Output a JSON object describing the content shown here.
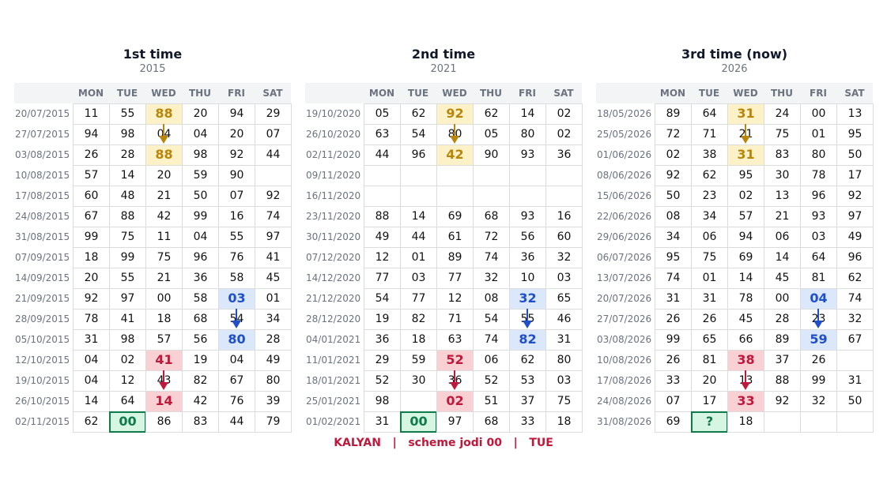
{
  "panels": [
    {
      "title": "1st time",
      "year": "2015",
      "headers": [
        "MON",
        "TUE",
        "WED",
        "THU",
        "FRI",
        "SAT"
      ],
      "rows": [
        {
          "date": "20/07/2015",
          "cells": [
            "11",
            "55",
            "88",
            "20",
            "94",
            "29"
          ]
        },
        {
          "date": "27/07/2015",
          "cells": [
            "94",
            "98",
            "04",
            "04",
            "20",
            "07"
          ]
        },
        {
          "date": "03/08/2015",
          "cells": [
            "26",
            "28",
            "88",
            "98",
            "92",
            "44"
          ]
        },
        {
          "date": "10/08/2015",
          "cells": [
            "57",
            "14",
            "20",
            "59",
            "90",
            null
          ]
        },
        {
          "date": "17/08/2015",
          "cells": [
            "60",
            "48",
            "21",
            "50",
            "07",
            "92"
          ]
        },
        {
          "date": "24/08/2015",
          "cells": [
            "67",
            "88",
            "42",
            "99",
            "16",
            "74"
          ]
        },
        {
          "date": "31/08/2015",
          "cells": [
            "99",
            "75",
            "11",
            "04",
            "55",
            "97"
          ]
        },
        {
          "date": "07/09/2015",
          "cells": [
            "18",
            "99",
            "75",
            "96",
            "76",
            "41"
          ]
        },
        {
          "date": "14/09/2015",
          "cells": [
            "20",
            "55",
            "21",
            "36",
            "58",
            "45"
          ]
        },
        {
          "date": "21/09/2015",
          "cells": [
            "92",
            "97",
            "00",
            "58",
            "03",
            "01"
          ]
        },
        {
          "date": "28/09/2015",
          "cells": [
            "78",
            "41",
            "18",
            "68",
            "54",
            "34"
          ]
        },
        {
          "date": "05/10/2015",
          "cells": [
            "31",
            "98",
            "57",
            "56",
            "80",
            "28"
          ]
        },
        {
          "date": "12/10/2015",
          "cells": [
            "04",
            "02",
            "41",
            "19",
            "04",
            "49"
          ]
        },
        {
          "date": "19/10/2015",
          "cells": [
            "04",
            "12",
            "43",
            "82",
            "67",
            "80"
          ]
        },
        {
          "date": "26/10/2015",
          "cells": [
            "14",
            "64",
            "14",
            "42",
            "76",
            "39"
          ]
        },
        {
          "date": "02/11/2015",
          "cells": [
            "62",
            "00",
            "86",
            "83",
            "44",
            "79"
          ]
        }
      ]
    },
    {
      "title": "2nd time",
      "year": "2021",
      "headers": [
        "MON",
        "TUE",
        "WED",
        "THU",
        "FRI",
        "SAT"
      ],
      "rows": [
        {
          "date": "19/10/2020",
          "cells": [
            "05",
            "62",
            "92",
            "62",
            "14",
            "02"
          ]
        },
        {
          "date": "26/10/2020",
          "cells": [
            "63",
            "54",
            "80",
            "05",
            "80",
            "02"
          ]
        },
        {
          "date": "02/11/2020",
          "cells": [
            "44",
            "96",
            "42",
            "90",
            "93",
            "36"
          ]
        },
        {
          "date": "09/11/2020",
          "cells": [
            null,
            null,
            null,
            null,
            null,
            null
          ]
        },
        {
          "date": "16/11/2020",
          "cells": [
            null,
            null,
            null,
            null,
            null,
            null
          ]
        },
        {
          "date": "23/11/2020",
          "cells": [
            "88",
            "14",
            "69",
            "68",
            "93",
            "16"
          ]
        },
        {
          "date": "30/11/2020",
          "cells": [
            "49",
            "44",
            "61",
            "72",
            "56",
            "60"
          ]
        },
        {
          "date": "07/12/2020",
          "cells": [
            "12",
            "01",
            "89",
            "74",
            "36",
            "32"
          ]
        },
        {
          "date": "14/12/2020",
          "cells": [
            "77",
            "03",
            "77",
            "32",
            "10",
            "03"
          ]
        },
        {
          "date": "21/12/2020",
          "cells": [
            "54",
            "77",
            "12",
            "08",
            "32",
            "65"
          ]
        },
        {
          "date": "28/12/2020",
          "cells": [
            "19",
            "82",
            "71",
            "54",
            "55",
            "46"
          ]
        },
        {
          "date": "04/01/2021",
          "cells": [
            "36",
            "18",
            "63",
            "74",
            "82",
            "31"
          ]
        },
        {
          "date": "11/01/2021",
          "cells": [
            "29",
            "59",
            "52",
            "06",
            "62",
            "80"
          ]
        },
        {
          "date": "18/01/2021",
          "cells": [
            "52",
            "30",
            "36",
            "52",
            "53",
            "03"
          ]
        },
        {
          "date": "25/01/2021",
          "cells": [
            "98",
            null,
            "02",
            "51",
            "37",
            "75"
          ]
        },
        {
          "date": "01/02/2021",
          "cells": [
            "31",
            "00",
            "97",
            "68",
            "33",
            "18"
          ]
        }
      ]
    },
    {
      "title": "3rd time  (now)",
      "year": "2026",
      "headers": [
        "MON",
        "TUE",
        "WED",
        "THU",
        "FRI",
        "SAT"
      ],
      "rows": [
        {
          "date": "18/05/2026",
          "cells": [
            "89",
            "64",
            "31",
            "24",
            "00",
            "13"
          ]
        },
        {
          "date": "25/05/2026",
          "cells": [
            "72",
            "71",
            "21",
            "75",
            "01",
            "95"
          ]
        },
        {
          "date": "01/06/2026",
          "cells": [
            "02",
            "38",
            "31",
            "83",
            "80",
            "50"
          ]
        },
        {
          "date": "08/06/2026",
          "cells": [
            "92",
            "62",
            "95",
            "30",
            "78",
            "17"
          ]
        },
        {
          "date": "15/06/2026",
          "cells": [
            "50",
            "23",
            "02",
            "13",
            "96",
            "92"
          ]
        },
        {
          "date": "22/06/2026",
          "cells": [
            "08",
            "34",
            "57",
            "21",
            "93",
            "97"
          ]
        },
        {
          "date": "29/06/2026",
          "cells": [
            "34",
            "06",
            "94",
            "06",
            "03",
            "49"
          ]
        },
        {
          "date": "06/07/2026",
          "cells": [
            "95",
            "75",
            "69",
            "14",
            "64",
            "96"
          ]
        },
        {
          "date": "13/07/2026",
          "cells": [
            "74",
            "01",
            "14",
            "45",
            "81",
            "62"
          ]
        },
        {
          "date": "20/07/2026",
          "cells": [
            "31",
            "31",
            "78",
            "00",
            "04",
            "74"
          ]
        },
        {
          "date": "27/07/2026",
          "cells": [
            "26",
            "26",
            "45",
            "28",
            "23",
            "32"
          ]
        },
        {
          "date": "03/08/2026",
          "cells": [
            "99",
            "65",
            "66",
            "89",
            "59",
            "67"
          ]
        },
        {
          "date": "10/08/2026",
          "cells": [
            "26",
            "81",
            "38",
            "37",
            "26",
            null
          ]
        },
        {
          "date": "17/08/2026",
          "cells": [
            "33",
            "20",
            "13",
            "88",
            "99",
            "31"
          ]
        },
        {
          "date": "24/08/2026",
          "cells": [
            "07",
            "17",
            "33",
            "92",
            "32",
            "50"
          ]
        },
        {
          "date": "31/08/2026",
          "cells": [
            "69",
            "?",
            "18",
            null,
            null,
            null
          ]
        }
      ]
    }
  ],
  "footer": "KALYAN   |   scheme jodi 00   |   TUE"
}
